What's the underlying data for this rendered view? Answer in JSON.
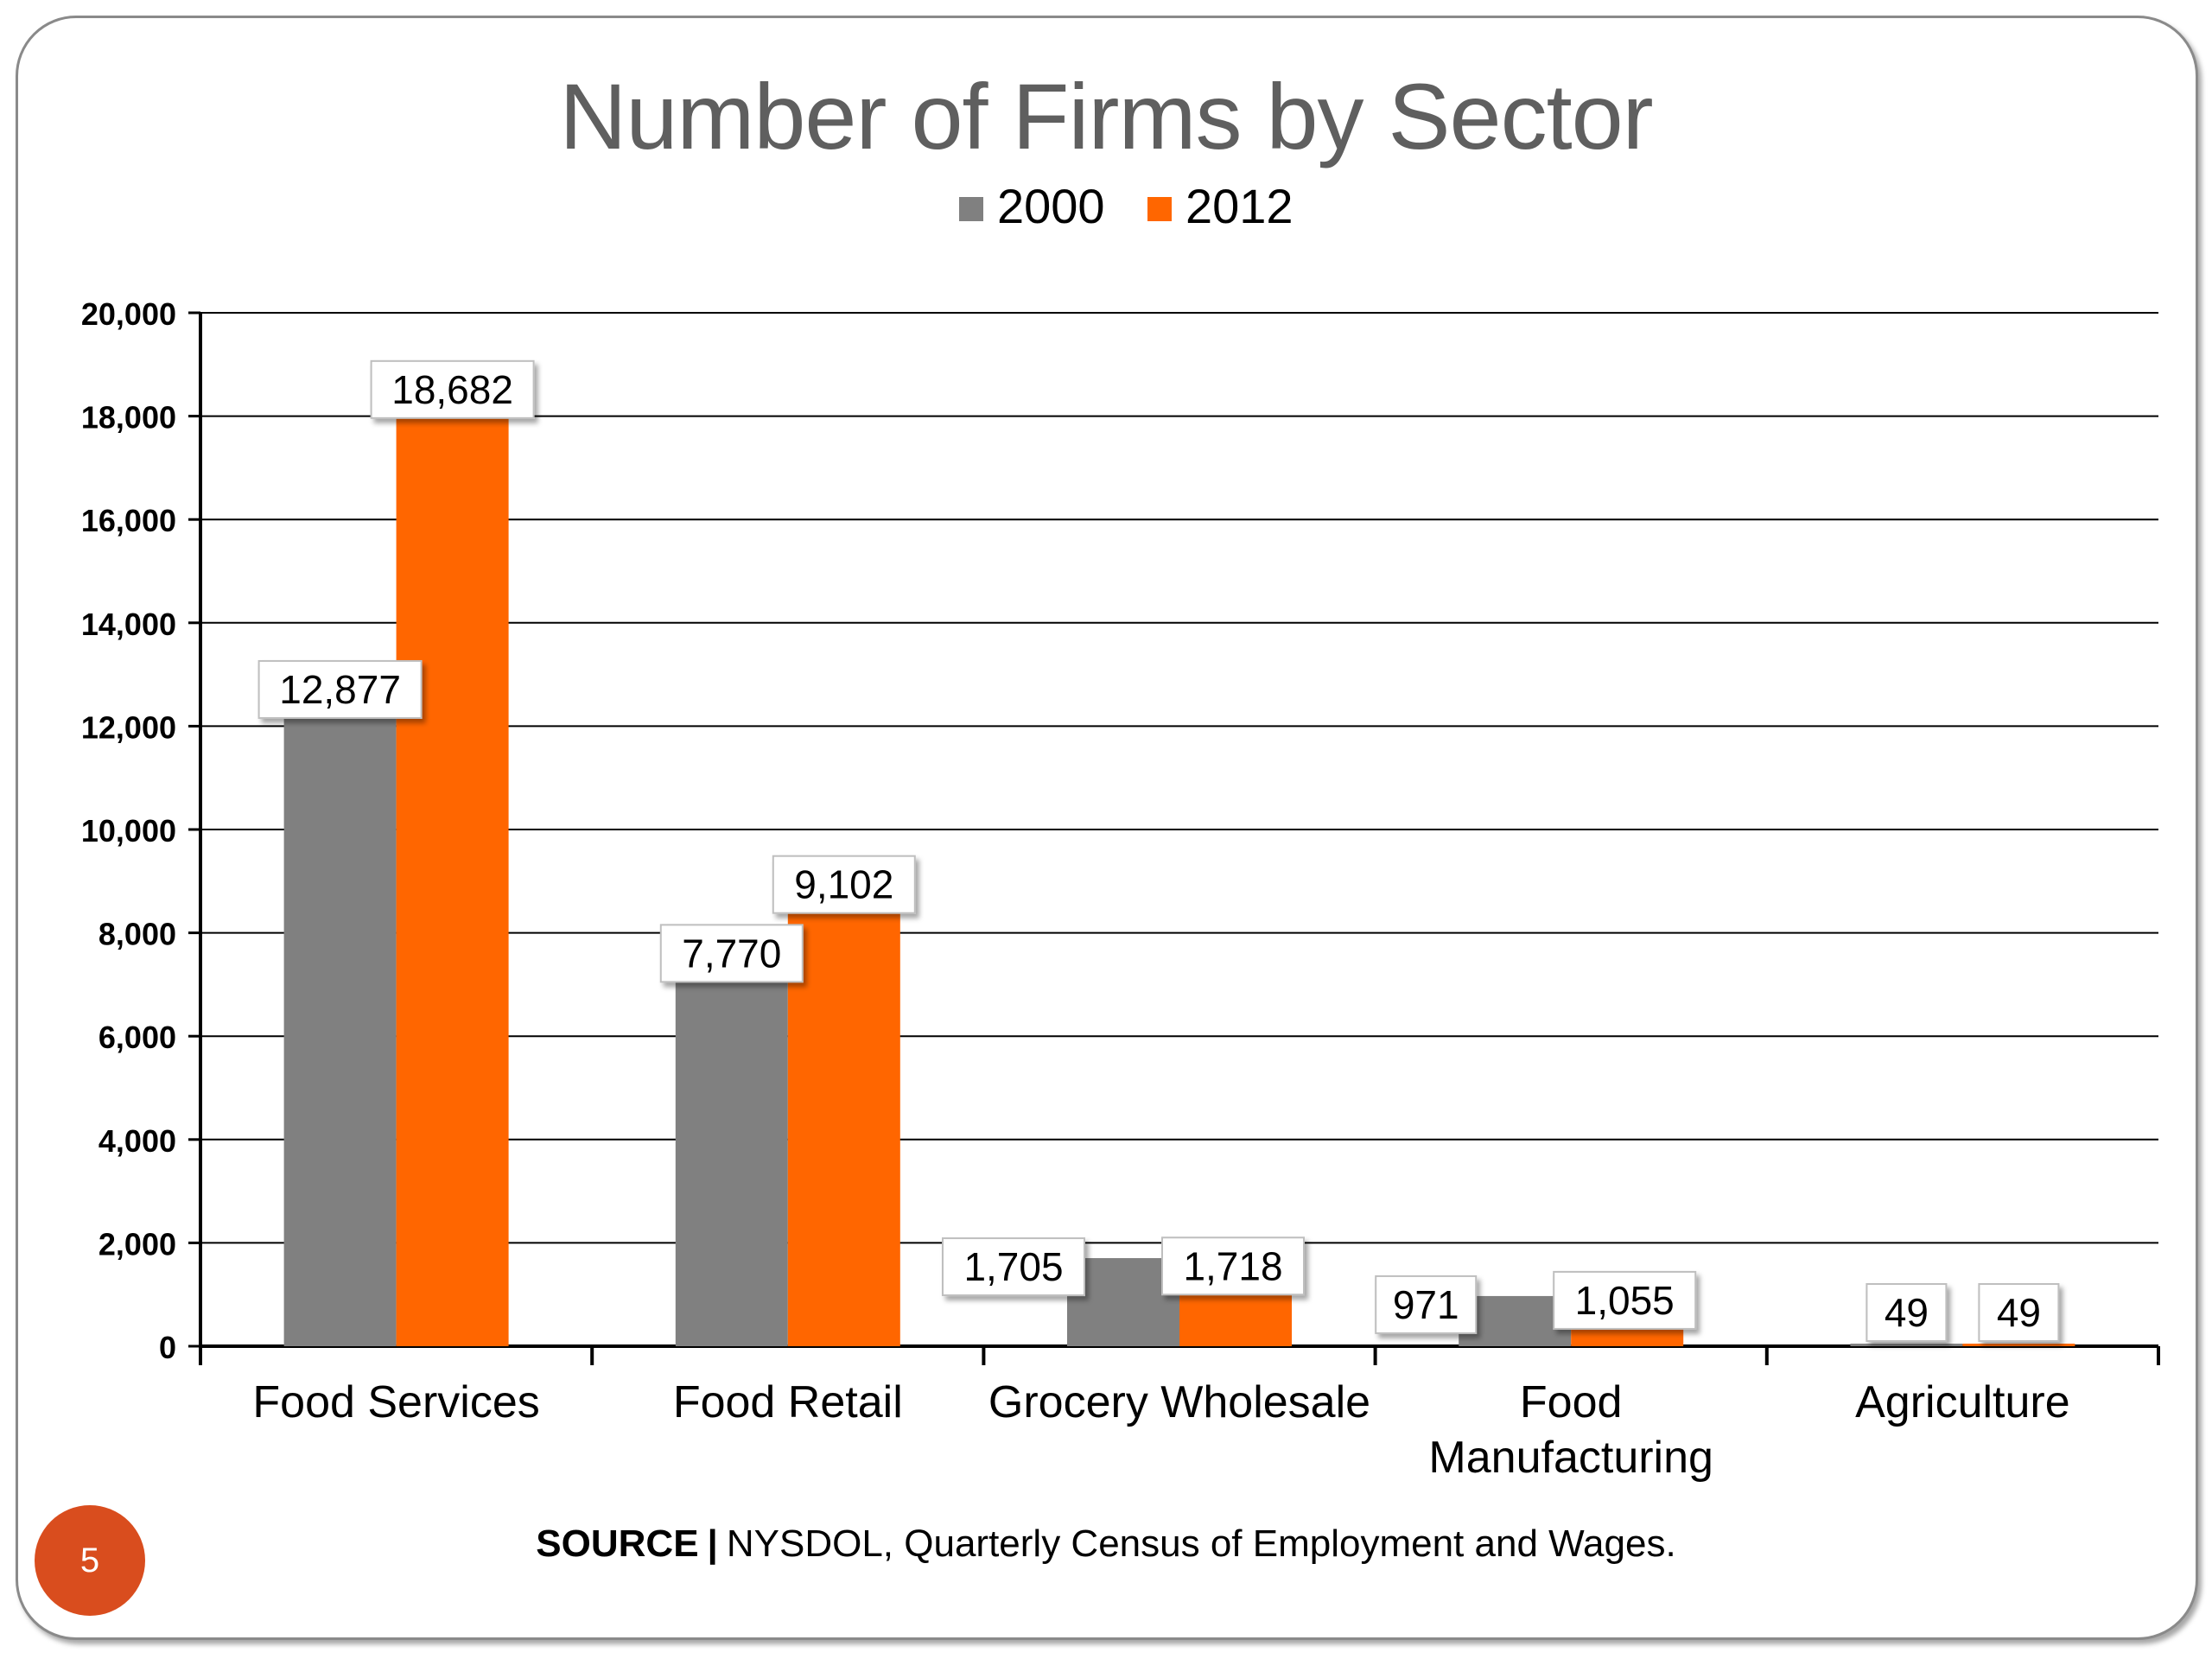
{
  "page_number": "5",
  "source": {
    "label": "SOURCE",
    "separator": "|",
    "text": "NYSDOL, Quarterly Census of Employment and Wages."
  },
  "colors": {
    "series_2000": "#808080",
    "series_2012": "#ff6600",
    "accent_badge": "#d94d1e"
  },
  "chart_data": {
    "type": "bar",
    "title": "Number of Firms by Sector",
    "xlabel": "",
    "ylabel": "",
    "ylim": [
      0,
      20000
    ],
    "yticks": [
      0,
      2000,
      4000,
      6000,
      8000,
      10000,
      12000,
      14000,
      16000,
      18000,
      20000
    ],
    "ytick_labels": [
      "0",
      "2,000",
      "4,000",
      "6,000",
      "8,000",
      "10,000",
      "12,000",
      "14,000",
      "16,000",
      "18,000",
      "20,000"
    ],
    "grid": true,
    "legend_position": "top",
    "categories": [
      [
        "Food Services"
      ],
      [
        "Food Retail"
      ],
      [
        "Grocery Wholesale"
      ],
      [
        "Food",
        "Manufacturing"
      ],
      [
        "Agriculture"
      ]
    ],
    "series": [
      {
        "name": "2000",
        "color": "#808080",
        "values": [
          12877,
          7770,
          1705,
          971,
          49
        ],
        "labels": [
          "12,877",
          "7,770",
          "1,705",
          "971",
          "49"
        ]
      },
      {
        "name": "2012",
        "color": "#ff6600",
        "values": [
          18682,
          9102,
          1718,
          1055,
          49
        ],
        "labels": [
          "18,682",
          "9,102",
          "1,718",
          "1,055",
          "49"
        ]
      }
    ]
  }
}
